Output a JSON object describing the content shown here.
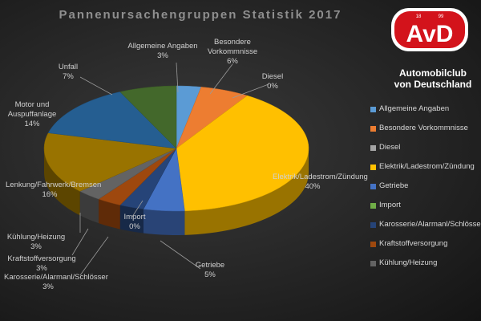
{
  "chart_data": {
    "type": "pie",
    "title": "Pannenursachengruppen Statistik 2017",
    "categories": [
      "Allgemeine Angaben",
      "Besondere Vorkommnisse",
      "Diesel",
      "Elektrik/Ladestrom/Zündung",
      "Getriebe",
      "Import",
      "Karosserie/Alarmanl/Schlösser",
      "Kraftstoffversorgung",
      "Kühlung/Heizung",
      "Lenkung/Fahrwerk/Bremsen",
      "Motor und Auspuffanlage",
      "Unfall"
    ],
    "values": [
      3,
      6,
      0,
      40,
      5,
      0,
      3,
      3,
      3,
      16,
      14,
      7
    ],
    "value_labels": [
      "3%",
      "6%",
      "0%",
      "40%",
      "5%",
      "0%",
      "3%",
      "3%",
      "3%",
      "16%",
      "14%",
      "7%"
    ],
    "colors": [
      "#5b9bd5",
      "#ed7d31",
      "#a5a5a5",
      "#ffc000",
      "#4472c4",
      "#70ad47",
      "#264478",
      "#9e480e",
      "#636363",
      "#997300",
      "#255e91",
      "#43682b"
    ],
    "legend": "right"
  },
  "logo": {
    "text": "AvD",
    "year_left": "18",
    "year_right": "99",
    "line1": "Automobilclub",
    "line2": "von Deutschland"
  }
}
